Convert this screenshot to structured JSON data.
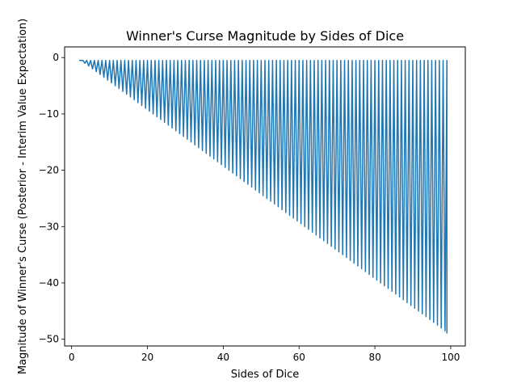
{
  "chart_data": {
    "type": "line",
    "title": "Winner's Curse Magnitude by Sides of Dice",
    "xlabel": "Sides of Dice",
    "ylabel": "Magnitude of Winner's Curse (Posterior - Interim Value Expectation)",
    "xlim": [
      -1.85,
      103.85
    ],
    "ylim": [
      -51.2,
      1.9
    ],
    "xticks": [
      0,
      20,
      40,
      60,
      80,
      100
    ],
    "yticks": [
      0,
      -10,
      -20,
      -30,
      -40,
      -50
    ],
    "xtick_labels": [
      "0",
      "20",
      "40",
      "60",
      "80",
      "100"
    ],
    "ytick_labels": [
      "0",
      "−10",
      "−20",
      "−30",
      "−40",
      "−50"
    ],
    "grid": false,
    "line_color": "#1f77b4",
    "series": [
      {
        "sides_range": [
          2,
          99
        ],
        "pattern": "for each number of sides n from 2 to 99, the curve runs from -0.5 (x = n) down to -(n-1)/2 (x = n + 0.5) and back up",
        "peak_value": -0.5,
        "trough_values_at_sides": {
          "2": -0.5,
          "10": -4.5,
          "20": -9.5,
          "40": -19.5,
          "60": -29.5,
          "80": -39.5,
          "99": -49
        }
      }
    ]
  }
}
